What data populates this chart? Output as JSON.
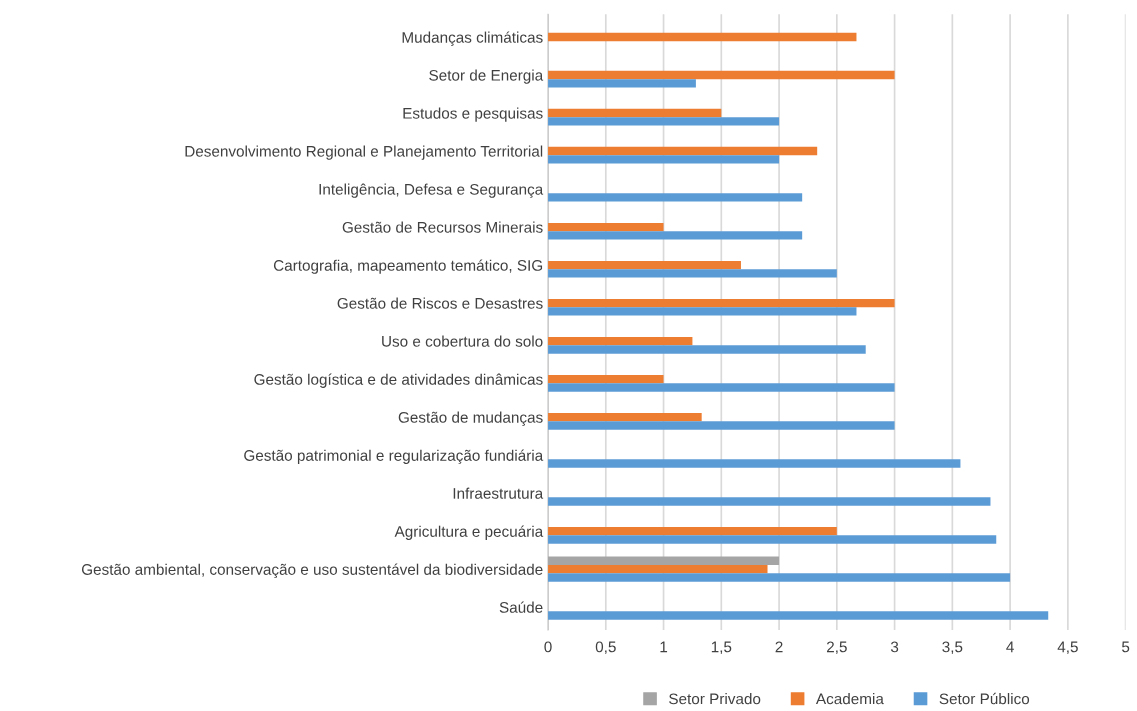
{
  "chart_data": {
    "type": "bar",
    "orientation": "horizontal",
    "categories": [
      "Mudanças climáticas",
      "Setor de Energia",
      "Estudos e pesquisas",
      "Desenvolvimento Regional e Planejamento Territorial",
      "Inteligência, Defesa e Segurança",
      "Gestão de Recursos Minerais",
      "Cartografia, mapeamento temático, SIG",
      "Gestão de Riscos e Desastres",
      "Uso e cobertura do solo",
      "Gestão logística e de atividades dinâmicas",
      "Gestão de mudanças",
      "Gestão patrimonial e regularização fundiária",
      "Infraestrutura",
      "Agricultura e pecuária",
      "Gestão ambiental, conservação e uso sustentável da biodiversidade",
      "Saúde"
    ],
    "series": [
      {
        "name": "Setor Privado",
        "color": "#a5a5a5",
        "values": [
          null,
          null,
          null,
          null,
          null,
          null,
          null,
          null,
          null,
          null,
          null,
          null,
          null,
          null,
          2.0,
          null
        ]
      },
      {
        "name": "Academia",
        "color": "#ed7d31",
        "values": [
          2.67,
          3.0,
          1.5,
          2.33,
          null,
          1.0,
          1.67,
          3.0,
          1.25,
          1.0,
          1.33,
          null,
          null,
          2.5,
          1.9,
          null
        ]
      },
      {
        "name": "Setor Público",
        "color": "#5b9bd5",
        "values": [
          null,
          1.28,
          2.0,
          2.0,
          2.2,
          2.2,
          2.5,
          2.67,
          2.75,
          3.0,
          3.0,
          3.57,
          3.83,
          3.88,
          4.0,
          4.33
        ]
      }
    ],
    "xlim": [
      0,
      5
    ],
    "xticks": [
      0,
      {
        "value": 0.5,
        "label": "0,5"
      },
      1,
      {
        "value": 1.5,
        "label": "1,5"
      },
      2,
      {
        "value": 2.5,
        "label": "2,5"
      },
      3,
      {
        "value": 3.5,
        "label": "3,5"
      },
      4,
      {
        "value": 4.5,
        "label": "4,5"
      },
      5
    ],
    "grid": "x",
    "legend": "bottom"
  }
}
